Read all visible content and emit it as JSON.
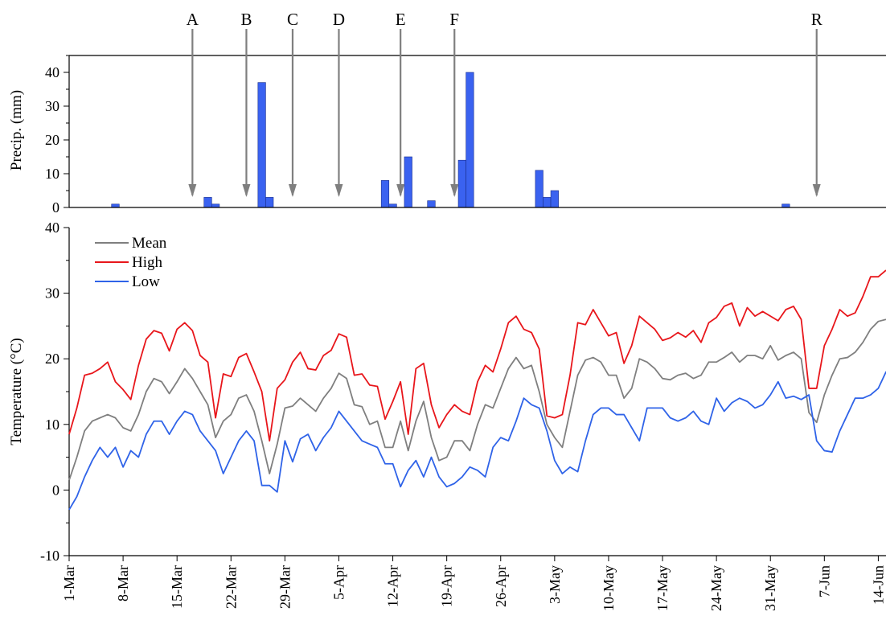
{
  "chart_data": [
    {
      "type": "bar",
      "ylabel": "Precip. (mm)",
      "ylim": [
        0,
        45
      ],
      "yticks": [
        0,
        10,
        20,
        30,
        40
      ],
      "color": "#3a62f0",
      "bars": [
        {
          "day": 6,
          "value": 1
        },
        {
          "day": 18,
          "value": 3
        },
        {
          "day": 19,
          "value": 1
        },
        {
          "day": 25,
          "value": 37
        },
        {
          "day": 26,
          "value": 3
        },
        {
          "day": 41,
          "value": 8
        },
        {
          "day": 42,
          "value": 1
        },
        {
          "day": 44,
          "value": 15
        },
        {
          "day": 47,
          "value": 2
        },
        {
          "day": 51,
          "value": 14
        },
        {
          "day": 52,
          "value": 40
        },
        {
          "day": 61,
          "value": 11
        },
        {
          "day": 62,
          "value": 3
        },
        {
          "day": 63,
          "value": 5
        },
        {
          "day": 93,
          "value": 1
        }
      ],
      "markers": [
        {
          "label": "A",
          "day": 16
        },
        {
          "label": "B",
          "day": 23
        },
        {
          "label": "C",
          "day": 29
        },
        {
          "label": "D",
          "day": 35
        },
        {
          "label": "E",
          "day": 43
        },
        {
          "label": "F",
          "day": 50
        },
        {
          "label": "R",
          "day": 97
        }
      ],
      "grid": false
    },
    {
      "type": "line",
      "ylabel": "Temperature (°C)",
      "ylim": [
        -10,
        40
      ],
      "yticks": [
        -10,
        0,
        10,
        20,
        30,
        40
      ],
      "x_tick_labels": [
        "1-Mar",
        "8-Mar",
        "15-Mar",
        "22-Mar",
        "29-Mar",
        "5-Apr",
        "12-Apr",
        "19-Apr",
        "26-Apr",
        "3-May",
        "10-May",
        "17-May",
        "24-May",
        "31-May",
        "7-Jun",
        "14-Jun"
      ],
      "legend_position": "top-left",
      "grid": false,
      "series": [
        {
          "name": "Mean",
          "color": "#7f7f7f",
          "values": [
            1.5,
            5,
            9,
            10.5,
            11,
            11.5,
            11,
            9.5,
            9,
            11.5,
            15,
            17,
            16.5,
            14.7,
            16.5,
            18.5,
            17,
            15,
            13,
            8,
            10.5,
            11.5,
            14,
            14.5,
            12,
            7.5,
            2.5,
            7,
            12.5,
            12.8,
            14,
            13,
            12,
            14,
            15.5,
            17.8,
            17,
            13,
            12.7,
            10,
            10.5,
            6.5,
            6.5,
            10.5,
            6,
            10.5,
            13.5,
            8,
            4.5,
            5,
            7.5,
            7.5,
            6,
            10,
            13,
            12.5,
            15.5,
            18.5,
            20.2,
            18.5,
            19,
            15,
            10,
            8,
            6.5,
            12,
            17.5,
            19.8,
            20.2,
            19.5,
            17.5,
            17.5,
            14,
            15.5,
            20,
            19.5,
            18.5,
            17,
            16.8,
            17.5,
            17.8,
            17,
            17.5,
            19.5,
            19.5,
            20.2,
            21,
            19.5,
            20.5,
            20.5,
            20,
            22,
            19.8,
            20.5,
            21,
            20,
            11.8,
            10.3,
            14.5,
            17.5,
            20,
            20.2,
            21,
            22.5,
            24.5,
            25.7,
            26
          ]
        },
        {
          "name": "High",
          "color": "#e8161b",
          "values": [
            8.5,
            12.5,
            17.5,
            17.8,
            18.5,
            19.5,
            16.5,
            15.3,
            13.8,
            19,
            23,
            24.3,
            23.9,
            21.2,
            24.5,
            25.5,
            24.3,
            20.5,
            19.5,
            11,
            17.7,
            17.3,
            20.2,
            20.8,
            18,
            15,
            7.5,
            15.5,
            16.8,
            19.5,
            21,
            18.5,
            18.3,
            20.5,
            21.3,
            23.8,
            23.3,
            17.5,
            17.7,
            16,
            15.8,
            10.8,
            13.5,
            16.5,
            8.5,
            18.5,
            19.3,
            13,
            9.5,
            11.5,
            13,
            12,
            11.5,
            16.5,
            19,
            18,
            21.5,
            25.5,
            26.5,
            24.5,
            24,
            21.5,
            11.3,
            11,
            11.5,
            17.5,
            25.5,
            25.2,
            27.5,
            25.5,
            23.5,
            24,
            19.3,
            22,
            26.5,
            25.5,
            24.5,
            22.8,
            23.2,
            24,
            23.3,
            24.3,
            22.5,
            25.5,
            26.3,
            28,
            28.5,
            25,
            27.8,
            26.5,
            27.2,
            26.5,
            25.8,
            27.5,
            28,
            26,
            15.5,
            15.5,
            22,
            24.5,
            27.5,
            26.5,
            27,
            29.5,
            32.5,
            32.5,
            33.5
          ]
        },
        {
          "name": "Low",
          "color": "#2f63e8",
          "values": [
            -3,
            -1,
            2,
            4.5,
            6.5,
            5,
            6.5,
            3.5,
            6,
            5,
            8.5,
            10.5,
            10.5,
            8.5,
            10.5,
            12,
            11.5,
            9,
            7.5,
            6,
            2.5,
            5,
            7.5,
            9,
            7.5,
            0.7,
            0.7,
            -0.3,
            7.5,
            4.3,
            7.8,
            8.5,
            6,
            8,
            9.5,
            12,
            10.5,
            9,
            7.5,
            7,
            6.5,
            4,
            4,
            0.5,
            3,
            4.5,
            2,
            5,
            2,
            0.5,
            1,
            2,
            3.5,
            3,
            2,
            6.5,
            8,
            7.5,
            10.5,
            14,
            13,
            12.5,
            9,
            4.5,
            2.5,
            3.5,
            2.8,
            7.5,
            11.5,
            12.5,
            12.5,
            11.5,
            11.5,
            9.5,
            7.5,
            12.5,
            12.5,
            12.5,
            11,
            10.5,
            11,
            12,
            10.5,
            10,
            14,
            12,
            13.3,
            14,
            13.5,
            12.5,
            13,
            14.5,
            16.5,
            14,
            14.3,
            13.8,
            14.5,
            7.5,
            6,
            5.8,
            9,
            11.5,
            14,
            14,
            14.5,
            15.5,
            18,
            18
          ]
        }
      ]
    }
  ]
}
